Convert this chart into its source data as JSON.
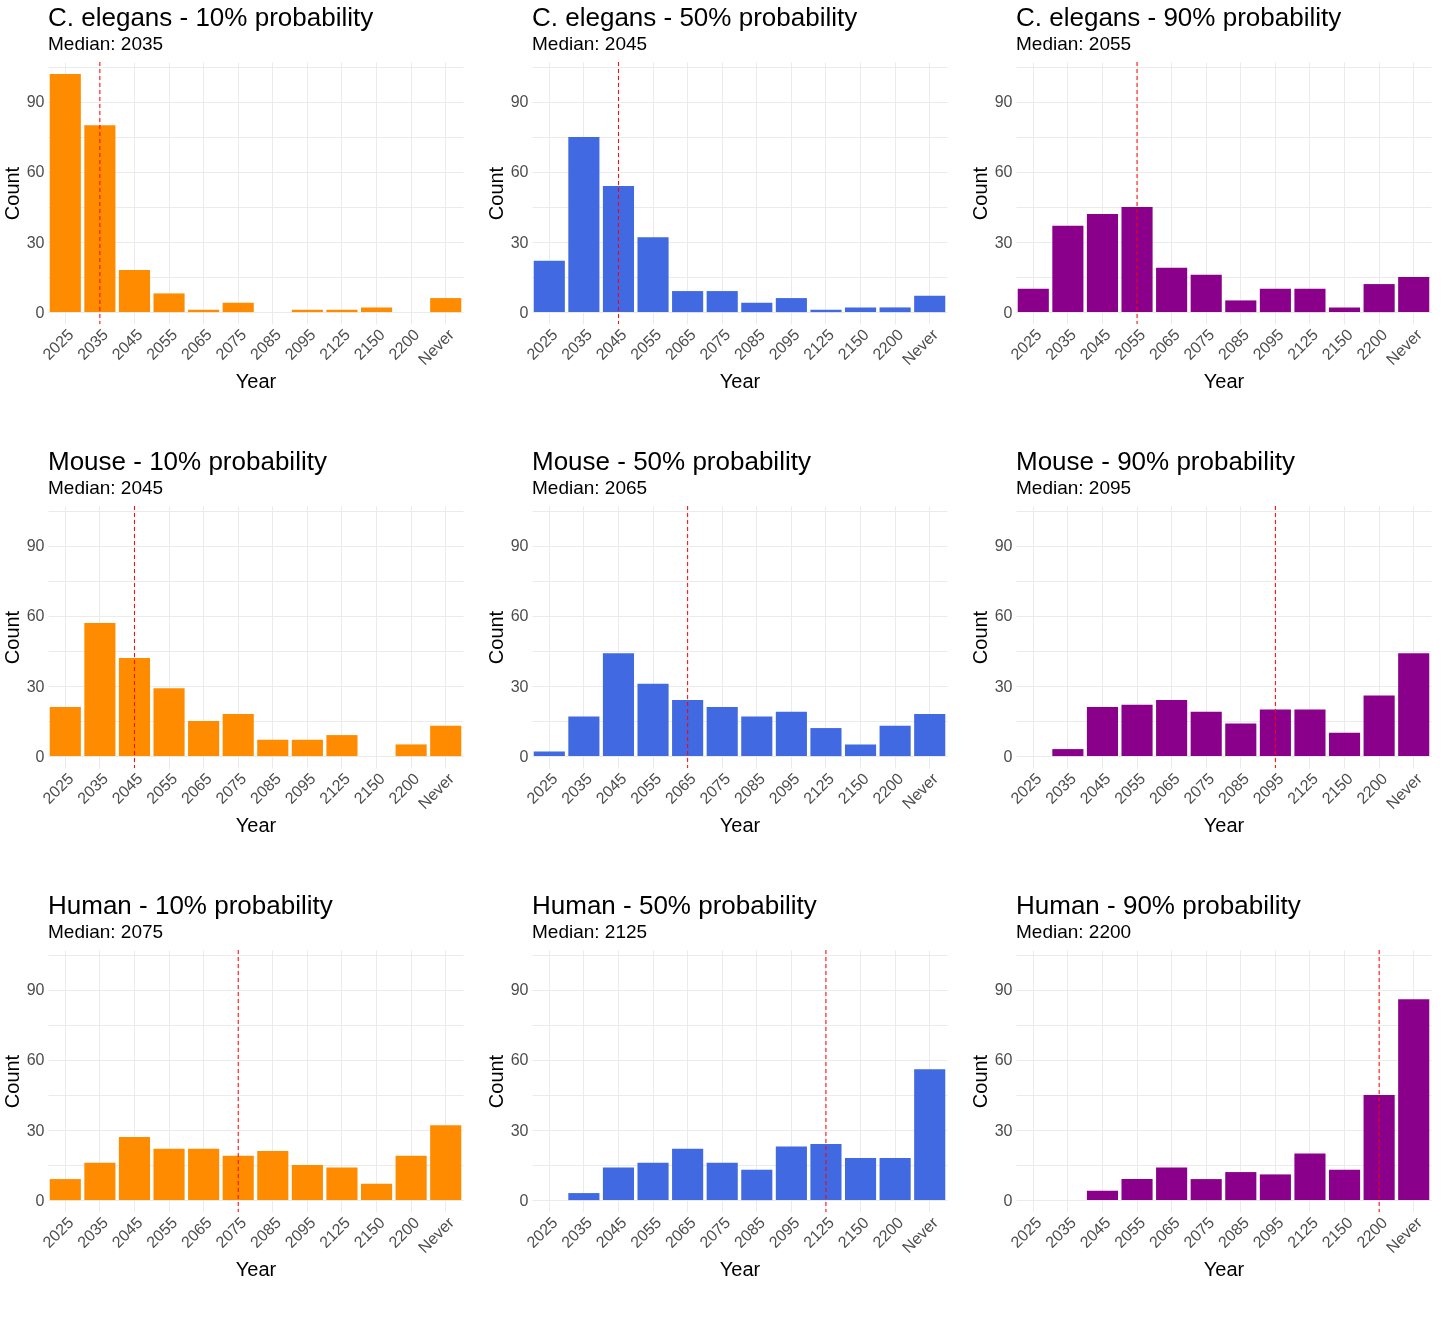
{
  "chart_data": [
    {
      "type": "bar",
      "title": "C. elegans - 10% probability",
      "subtitle": "Median: 2035",
      "xlabel": "Year",
      "ylabel": "Count",
      "categories": [
        "2025",
        "2035",
        "2045",
        "2055",
        "2065",
        "2075",
        "2085",
        "2095",
        "2125",
        "2150",
        "2200",
        "Never"
      ],
      "values": [
        102,
        80,
        18,
        8,
        1,
        4,
        0,
        1,
        1,
        2,
        0,
        6
      ],
      "color": "#ff8c00",
      "ylim": [
        -5.1,
        107.1
      ],
      "yticks": [
        0,
        {
          "value": 15,
          "label": null
        },
        30,
        {
          "value": 45,
          "label": null
        },
        60,
        {
          "value": 75,
          "label": null
        },
        90,
        {
          "value": 105,
          "label": null
        }
      ],
      "grid": true,
      "ref_lines": [
        {
          "axis": "x",
          "value": "2035",
          "color": "#ff0000",
          "line_style": "dashed"
        }
      ]
    },
    {
      "type": "bar",
      "title": "C. elegans - 50% probability",
      "subtitle": "Median: 2045",
      "xlabel": "Year",
      "ylabel": "Count",
      "categories": [
        "2025",
        "2035",
        "2045",
        "2055",
        "2065",
        "2075",
        "2085",
        "2095",
        "2125",
        "2150",
        "2200",
        "Never"
      ],
      "values": [
        22,
        75,
        54,
        32,
        9,
        9,
        4,
        6,
        1,
        2,
        2,
        7
      ],
      "color": "#4169e1",
      "ylim": [
        -5.1,
        107.1
      ],
      "yticks": [
        0,
        {
          "value": 15,
          "label": null
        },
        30,
        {
          "value": 45,
          "label": null
        },
        60,
        {
          "value": 75,
          "label": null
        },
        90,
        {
          "value": 105,
          "label": null
        }
      ],
      "grid": true,
      "ref_lines": [
        {
          "axis": "x",
          "value": "2045",
          "color": "#ff0000",
          "line_style": "dashed"
        }
      ]
    },
    {
      "type": "bar",
      "title": "C. elegans - 90% probability",
      "subtitle": "Median: 2055",
      "xlabel": "Year",
      "ylabel": "Count",
      "categories": [
        "2025",
        "2035",
        "2045",
        "2055",
        "2065",
        "2075",
        "2085",
        "2095",
        "2125",
        "2150",
        "2200",
        "Never"
      ],
      "values": [
        10,
        37,
        42,
        45,
        19,
        16,
        5,
        10,
        10,
        2,
        12,
        15
      ],
      "color": "#8b008b",
      "ylim": [
        -5.1,
        107.1
      ],
      "yticks": [
        0,
        {
          "value": 15,
          "label": null
        },
        30,
        {
          "value": 45,
          "label": null
        },
        60,
        {
          "value": 75,
          "label": null
        },
        90,
        {
          "value": 105,
          "label": null
        }
      ],
      "grid": true,
      "ref_lines": [
        {
          "axis": "x",
          "value": "2055",
          "color": "#ff0000",
          "line_style": "dashed"
        }
      ]
    },
    {
      "type": "bar",
      "title": "Mouse - 10% probability",
      "subtitle": "Median: 2045",
      "xlabel": "Year",
      "ylabel": "Count",
      "categories": [
        "2025",
        "2035",
        "2045",
        "2055",
        "2065",
        "2075",
        "2085",
        "2095",
        "2125",
        "2150",
        "2200",
        "Never"
      ],
      "values": [
        21,
        57,
        42,
        29,
        15,
        18,
        7,
        7,
        9,
        0,
        5,
        13
      ],
      "color": "#ff8c00",
      "ylim": [
        -5.1,
        107.1
      ],
      "yticks": [
        0,
        {
          "value": 15,
          "label": null
        },
        30,
        {
          "value": 45,
          "label": null
        },
        60,
        {
          "value": 75,
          "label": null
        },
        90,
        {
          "value": 105,
          "label": null
        }
      ],
      "grid": true,
      "ref_lines": [
        {
          "axis": "x",
          "value": "2045",
          "color": "#ff0000",
          "line_style": "dashed"
        }
      ]
    },
    {
      "type": "bar",
      "title": "Mouse - 50% probability",
      "subtitle": "Median: 2065",
      "xlabel": "Year",
      "ylabel": "Count",
      "categories": [
        "2025",
        "2035",
        "2045",
        "2055",
        "2065",
        "2075",
        "2085",
        "2095",
        "2125",
        "2150",
        "2200",
        "Never"
      ],
      "values": [
        2,
        17,
        44,
        31,
        24,
        21,
        17,
        19,
        12,
        5,
        13,
        18
      ],
      "color": "#4169e1",
      "ylim": [
        -5.1,
        107.1
      ],
      "yticks": [
        0,
        {
          "value": 15,
          "label": null
        },
        30,
        {
          "value": 45,
          "label": null
        },
        60,
        {
          "value": 75,
          "label": null
        },
        90,
        {
          "value": 105,
          "label": null
        }
      ],
      "grid": true,
      "ref_lines": [
        {
          "axis": "x",
          "value": "2065",
          "color": "#ff0000",
          "line_style": "dashed"
        }
      ]
    },
    {
      "type": "bar",
      "title": "Mouse - 90% probability",
      "subtitle": "Median: 2095",
      "xlabel": "Year",
      "ylabel": "Count",
      "categories": [
        "2025",
        "2035",
        "2045",
        "2055",
        "2065",
        "2075",
        "2085",
        "2095",
        "2125",
        "2150",
        "2200",
        "Never"
      ],
      "values": [
        0,
        3,
        21,
        22,
        24,
        19,
        14,
        20,
        20,
        10,
        26,
        44
      ],
      "color": "#8b008b",
      "ylim": [
        -5.1,
        107.1
      ],
      "yticks": [
        0,
        {
          "value": 15,
          "label": null
        },
        30,
        {
          "value": 45,
          "label": null
        },
        60,
        {
          "value": 75,
          "label": null
        },
        90,
        {
          "value": 105,
          "label": null
        }
      ],
      "grid": true,
      "ref_lines": [
        {
          "axis": "x",
          "value": "2095",
          "color": "#ff0000",
          "line_style": "dashed"
        }
      ]
    },
    {
      "type": "bar",
      "title": "Human - 10% probability",
      "subtitle": "Median: 2075",
      "xlabel": "Year",
      "ylabel": "Count",
      "categories": [
        "2025",
        "2035",
        "2045",
        "2055",
        "2065",
        "2075",
        "2085",
        "2095",
        "2125",
        "2150",
        "2200",
        "Never"
      ],
      "values": [
        9,
        16,
        27,
        22,
        22,
        19,
        21,
        15,
        14,
        7,
        19,
        32
      ],
      "color": "#ff8c00",
      "ylim": [
        -5.1,
        107.1
      ],
      "yticks": [
        0,
        {
          "value": 15,
          "label": null
        },
        30,
        {
          "value": 45,
          "label": null
        },
        60,
        {
          "value": 75,
          "label": null
        },
        90,
        {
          "value": 105,
          "label": null
        }
      ],
      "grid": true,
      "ref_lines": [
        {
          "axis": "x",
          "value": "2075",
          "color": "#ff0000",
          "line_style": "dashed"
        }
      ]
    },
    {
      "type": "bar",
      "title": "Human - 50% probability",
      "subtitle": "Median: 2125",
      "xlabel": "Year",
      "ylabel": "Count",
      "categories": [
        "2025",
        "2035",
        "2045",
        "2055",
        "2065",
        "2075",
        "2085",
        "2095",
        "2125",
        "2150",
        "2200",
        "Never"
      ],
      "values": [
        0,
        3,
        14,
        16,
        22,
        16,
        13,
        23,
        24,
        18,
        18,
        56
      ],
      "color": "#4169e1",
      "ylim": [
        -5.1,
        107.1
      ],
      "yticks": [
        0,
        {
          "value": 15,
          "label": null
        },
        30,
        {
          "value": 45,
          "label": null
        },
        60,
        {
          "value": 75,
          "label": null
        },
        90,
        {
          "value": 105,
          "label": null
        }
      ],
      "grid": true,
      "ref_lines": [
        {
          "axis": "x",
          "value": "2125",
          "color": "#ff0000",
          "line_style": "dashed"
        }
      ]
    },
    {
      "type": "bar",
      "title": "Human - 90% probability",
      "subtitle": "Median: 2200",
      "xlabel": "Year",
      "ylabel": "Count",
      "categories": [
        "2025",
        "2035",
        "2045",
        "2055",
        "2065",
        "2075",
        "2085",
        "2095",
        "2125",
        "2150",
        "2200",
        "Never"
      ],
      "values": [
        0,
        0,
        4,
        9,
        14,
        9,
        12,
        11,
        20,
        13,
        45,
        86
      ],
      "color": "#8b008b",
      "ylim": [
        -5.1,
        107.1
      ],
      "yticks": [
        0,
        {
          "value": 15,
          "label": null
        },
        30,
        {
          "value": 45,
          "label": null
        },
        60,
        {
          "value": 75,
          "label": null
        },
        90,
        {
          "value": 105,
          "label": null
        }
      ],
      "grid": true,
      "ref_lines": [
        {
          "axis": "x",
          "value": "2200",
          "color": "#ff0000",
          "line_style": "dashed"
        }
      ]
    }
  ]
}
